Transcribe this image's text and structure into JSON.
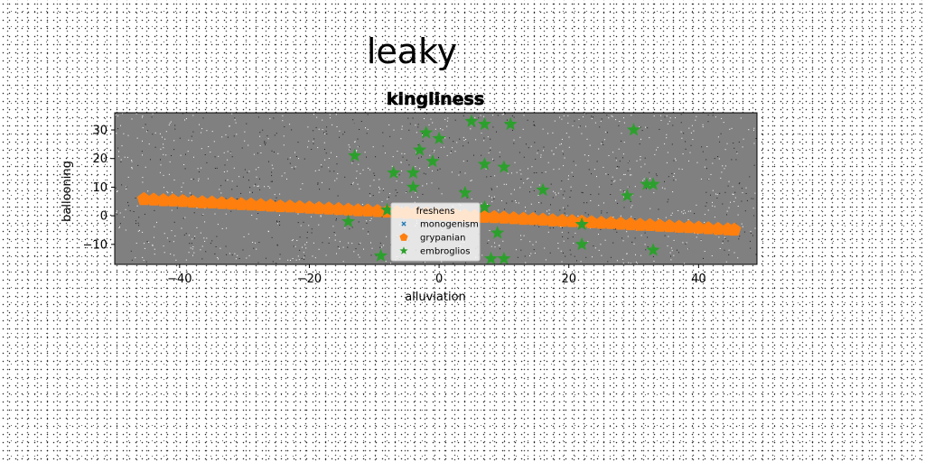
{
  "suptitle": "leaky",
  "chart_data": {
    "type": "scatter",
    "title": "kingliness",
    "xlabel": "alluviation",
    "ylabel": "ballooning",
    "xlim": [
      -50,
      49
    ],
    "ylim": [
      -17,
      36
    ],
    "xticks": [
      -40,
      -20,
      0,
      20,
      40
    ],
    "yticks": [
      -10,
      0,
      10,
      20,
      30
    ],
    "grid": false,
    "plot_background": "#808080",
    "legend": {
      "title": "freshens",
      "placement": "lower-center"
    },
    "series": [
      {
        "name": "monogenism",
        "marker": "x",
        "color": "#1f77b4",
        "x": [],
        "y": []
      },
      {
        "name": "grypanian",
        "marker": "pentagon",
        "color": "#ff7f0e",
        "x": [
          -45.5,
          -44,
          -42.5,
          -41,
          -39.5,
          -38,
          -36.5,
          -35,
          -33.5,
          -32,
          -30.5,
          -29,
          -27.5,
          -26,
          -24.5,
          -23,
          -21.5,
          -20,
          -18.5,
          -17,
          -15.5,
          -14,
          -12.5,
          -11,
          -9.5,
          -8,
          -6.5,
          -5,
          -3.5,
          -2,
          -0.5,
          1,
          2.5,
          4,
          5.5,
          7,
          8.5,
          10,
          11.5,
          13,
          14.5,
          16,
          17.5,
          19,
          20.5,
          22,
          23.5,
          25,
          26.5,
          28,
          29.5,
          31,
          32.5,
          34,
          35.5,
          37,
          38.5,
          40,
          41.5,
          43,
          44.5,
          45.5
        ],
        "y": [
          5.8,
          5.6,
          5.4,
          5.3,
          5.1,
          4.9,
          4.7,
          4.6,
          4.4,
          4.2,
          4.0,
          3.9,
          3.7,
          3.5,
          3.3,
          3.2,
          3.0,
          2.8,
          2.6,
          2.5,
          2.3,
          2.1,
          1.9,
          1.8,
          1.6,
          1.4,
          1.2,
          1.0,
          0.9,
          0.7,
          0.5,
          0.3,
          0.2,
          0.0,
          -0.2,
          -0.4,
          -0.5,
          -0.7,
          -0.9,
          -1.1,
          -1.2,
          -1.4,
          -1.6,
          -1.8,
          -1.9,
          -2.1,
          -2.3,
          -2.5,
          -2.6,
          -2.8,
          -3.0,
          -3.2,
          -3.3,
          -3.5,
          -3.7,
          -3.9,
          -4.0,
          -4.2,
          -4.4,
          -4.6,
          -4.8,
          -4.9
        ]
      },
      {
        "name": "embroglios",
        "marker": "star",
        "color": "#2ca02c",
        "x": [
          5,
          7,
          11,
          30,
          -2,
          0,
          -13,
          -3,
          -1,
          -7,
          -4,
          7,
          10,
          -4,
          4,
          16,
          29,
          32,
          33,
          -8,
          7,
          -14,
          22,
          9,
          22,
          33,
          -9,
          8,
          10
        ],
        "y": [
          33,
          32,
          32,
          30,
          29,
          27,
          21,
          23,
          19,
          15,
          15,
          18,
          17,
          10,
          8,
          9,
          7,
          11,
          11,
          2,
          3,
          -2,
          -3,
          -6,
          -10,
          -12,
          -14,
          -15,
          -15
        ]
      }
    ]
  }
}
